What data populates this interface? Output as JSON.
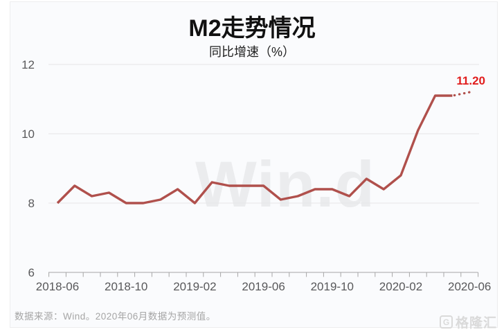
{
  "header": {
    "title": "M2走势情况",
    "subtitle": "同比增速（%）"
  },
  "watermark": "Win.d",
  "chart_data": {
    "type": "line",
    "title": "M2走势情况",
    "subtitle": "同比增速（%）",
    "x": [
      "2018-06",
      "2018-07",
      "2018-08",
      "2018-09",
      "2018-10",
      "2018-11",
      "2018-12",
      "2019-01",
      "2019-02",
      "2019-03",
      "2019-04",
      "2019-05",
      "2019-06",
      "2019-07",
      "2019-08",
      "2019-09",
      "2019-10",
      "2019-11",
      "2019-12",
      "2020-01",
      "2020-02",
      "2020-03",
      "2020-04",
      "2020-05",
      "2020-06"
    ],
    "values": [
      8.0,
      8.5,
      8.2,
      8.3,
      8.0,
      8.0,
      8.1,
      8.4,
      8.0,
      8.6,
      8.5,
      8.5,
      8.5,
      8.1,
      8.2,
      8.4,
      8.4,
      8.2,
      8.7,
      8.4,
      8.8,
      10.1,
      11.1,
      11.1,
      11.2
    ],
    "ylim": [
      6,
      12
    ],
    "yticks": [
      6,
      8,
      10,
      12
    ],
    "xtick_labels": [
      "2018-06",
      "2018-10",
      "2019-02",
      "2019-06",
      "2019-10",
      "2020-02",
      "2020-06"
    ],
    "grid": true,
    "legend": "none",
    "forecast_last_point": true,
    "last_label": "11.20",
    "line_color": "#b0504c",
    "label_color": "#e11d1d",
    "grid_color": "#e6e6e8",
    "axis_color": "#a6a6a6"
  },
  "footer": {
    "source_note": "数据来源：Wind。2020年06月数据为预测值。"
  },
  "logo": {
    "icon": "G",
    "text": "格隆汇"
  }
}
